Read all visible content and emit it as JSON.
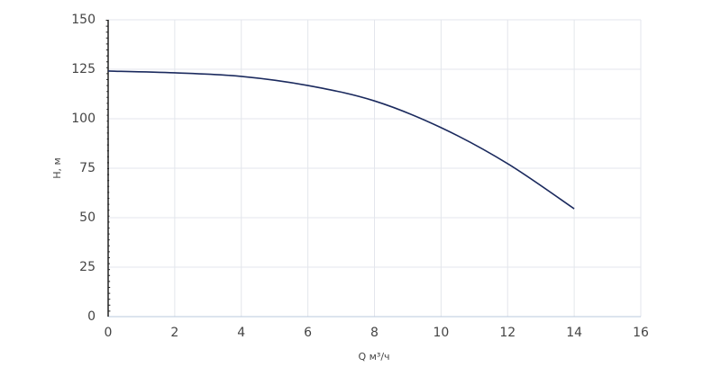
{
  "chart_data": {
    "type": "line",
    "x_label": "Q м³/ч",
    "y_label": "H, м",
    "x": [
      0,
      2,
      4,
      6,
      8,
      10,
      12,
      14
    ],
    "series": [
      {
        "name": "H",
        "color": "#1b2a5e",
        "values": [
          124.1,
          123.2,
          121.4,
          116.8,
          109,
          95.5,
          77.3,
          54.5
        ]
      }
    ],
    "xlim": [
      0,
      16
    ],
    "xticks": [
      0,
      2,
      4,
      6,
      8,
      10,
      12,
      14,
      16
    ],
    "ylim": [
      0,
      150
    ],
    "yticks": [
      0,
      25,
      50,
      75,
      100,
      125,
      150
    ],
    "grid": true
  }
}
